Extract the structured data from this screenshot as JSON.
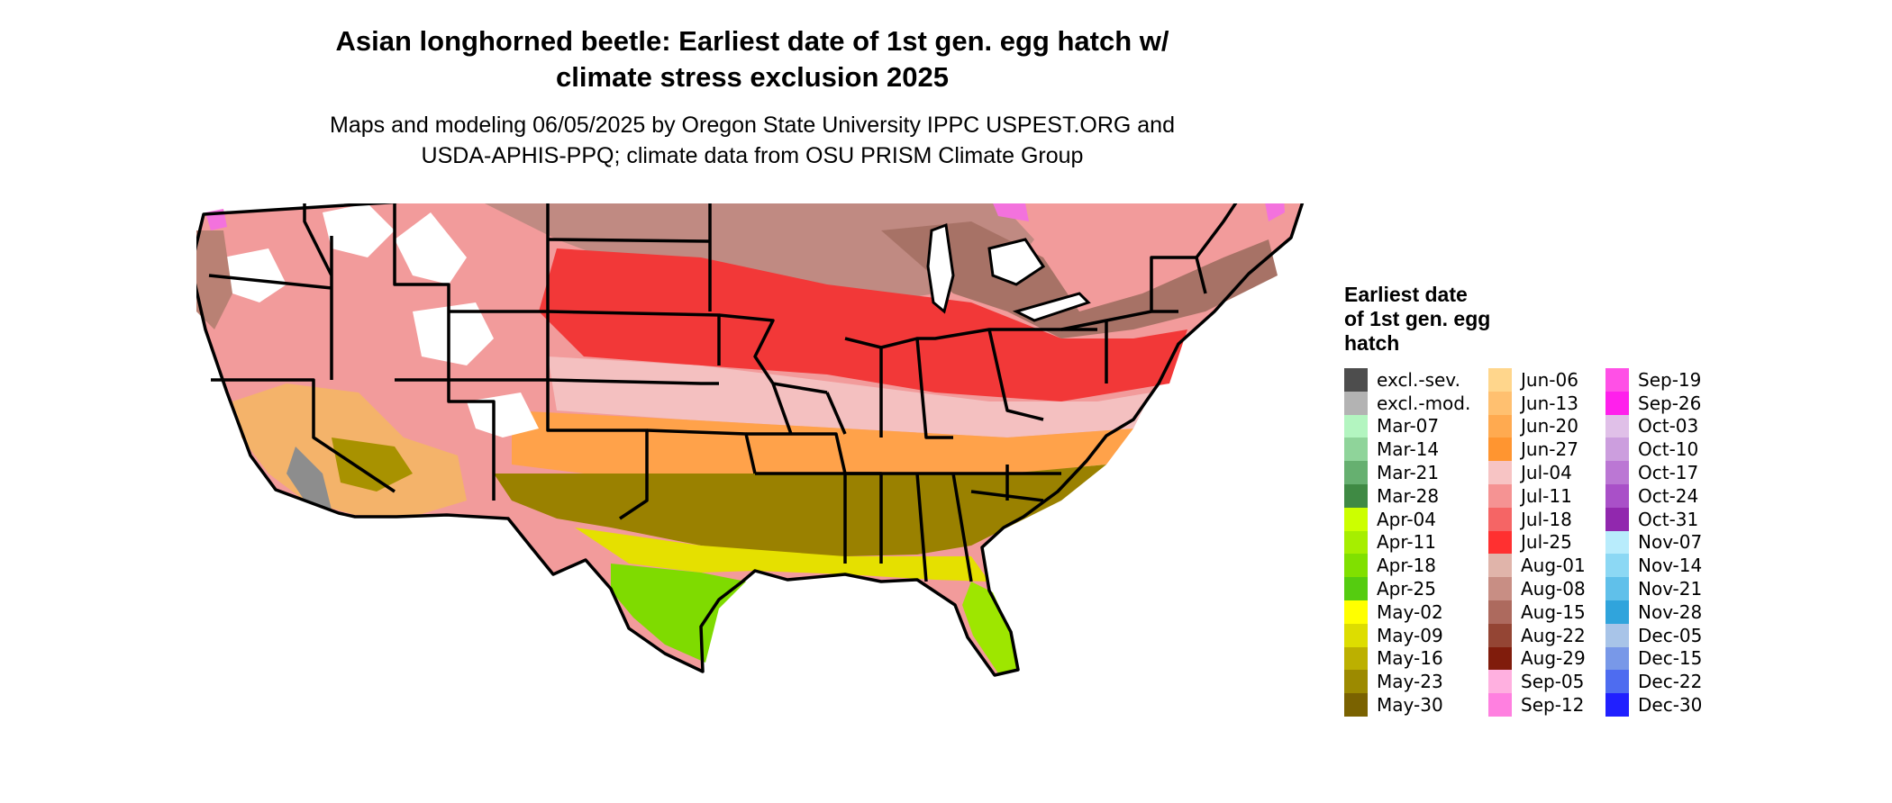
{
  "header": {
    "title_line1": "Asian longhorned beetle: Earliest date of 1st gen. egg hatch w/",
    "title_line2": "climate stress exclusion 2025",
    "subtitle_line1": "Maps and modeling 06/05/2025 by Oregon State University IPPC USPEST.ORG and",
    "subtitle_line2": "USDA-APHIS-PPQ; climate data from OSU PRISM Climate Group"
  },
  "legend": {
    "title_line1": "Earliest date",
    "title_line2": "of 1st gen. egg",
    "title_line3": "hatch",
    "columns": [
      [
        {
          "label": "excl.-sev.",
          "color": "#4d4d4d"
        },
        {
          "label": "excl.-mod.",
          "color": "#b3b3b3"
        },
        {
          "label": "Mar-07",
          "color": "#b3f5c0"
        },
        {
          "label": "Mar-14",
          "color": "#8fd49a"
        },
        {
          "label": "Mar-21",
          "color": "#66b070"
        },
        {
          "label": "Mar-28",
          "color": "#3f8a44"
        },
        {
          "label": "Apr-04",
          "color": "#ccff00"
        },
        {
          "label": "Apr-11",
          "color": "#a6ee00"
        },
        {
          "label": "Apr-18",
          "color": "#80e000"
        },
        {
          "label": "Apr-25",
          "color": "#55cc10"
        },
        {
          "label": "May-02",
          "color": "#ffff00"
        },
        {
          "label": "May-09",
          "color": "#dddd00"
        },
        {
          "label": "May-16",
          "color": "#bcb000"
        },
        {
          "label": "May-23",
          "color": "#9c8a00"
        },
        {
          "label": "May-30",
          "color": "#7a6200"
        }
      ],
      [
        {
          "label": "Jun-06",
          "color": "#ffd68c"
        },
        {
          "label": "Jun-13",
          "color": "#ffc070"
        },
        {
          "label": "Jun-20",
          "color": "#ffaa50"
        },
        {
          "label": "Jun-27",
          "color": "#ff9530"
        },
        {
          "label": "Jul-04",
          "color": "#f7c4c4"
        },
        {
          "label": "Jul-11",
          "color": "#f59393"
        },
        {
          "label": "Jul-18",
          "color": "#f56565"
        },
        {
          "label": "Jul-25",
          "color": "#ff3030"
        },
        {
          "label": "Aug-01",
          "color": "#e0b4aa"
        },
        {
          "label": "Aug-08",
          "color": "#c88e84"
        },
        {
          "label": "Aug-15",
          "color": "#ad6a5e"
        },
        {
          "label": "Aug-22",
          "color": "#944534"
        },
        {
          "label": "Aug-29",
          "color": "#801c0c"
        },
        {
          "label": "Sep-05",
          "color": "#ffb0e0"
        },
        {
          "label": "Sep-12",
          "color": "#ff80e0"
        }
      ],
      [
        {
          "label": "Sep-19",
          "color": "#ff50e6"
        },
        {
          "label": "Sep-26",
          "color": "#ff20ec"
        },
        {
          "label": "Oct-03",
          "color": "#e0c0e8"
        },
        {
          "label": "Oct-10",
          "color": "#cc9ede"
        },
        {
          "label": "Oct-17",
          "color": "#bb77d4"
        },
        {
          "label": "Oct-24",
          "color": "#a950c8"
        },
        {
          "label": "Oct-31",
          "color": "#9128ae"
        },
        {
          "label": "Nov-07",
          "color": "#b8ecfc"
        },
        {
          "label": "Nov-14",
          "color": "#8cd8f4"
        },
        {
          "label": "Nov-21",
          "color": "#60c0ea"
        },
        {
          "label": "Nov-28",
          "color": "#30a4dc"
        },
        {
          "label": "Dec-05",
          "color": "#a8c4e8"
        },
        {
          "label": "Dec-15",
          "color": "#7898e8"
        },
        {
          "label": "Dec-22",
          "color": "#4e6cf0"
        },
        {
          "label": "Dec-30",
          "color": "#2020ff"
        }
      ]
    ]
  }
}
